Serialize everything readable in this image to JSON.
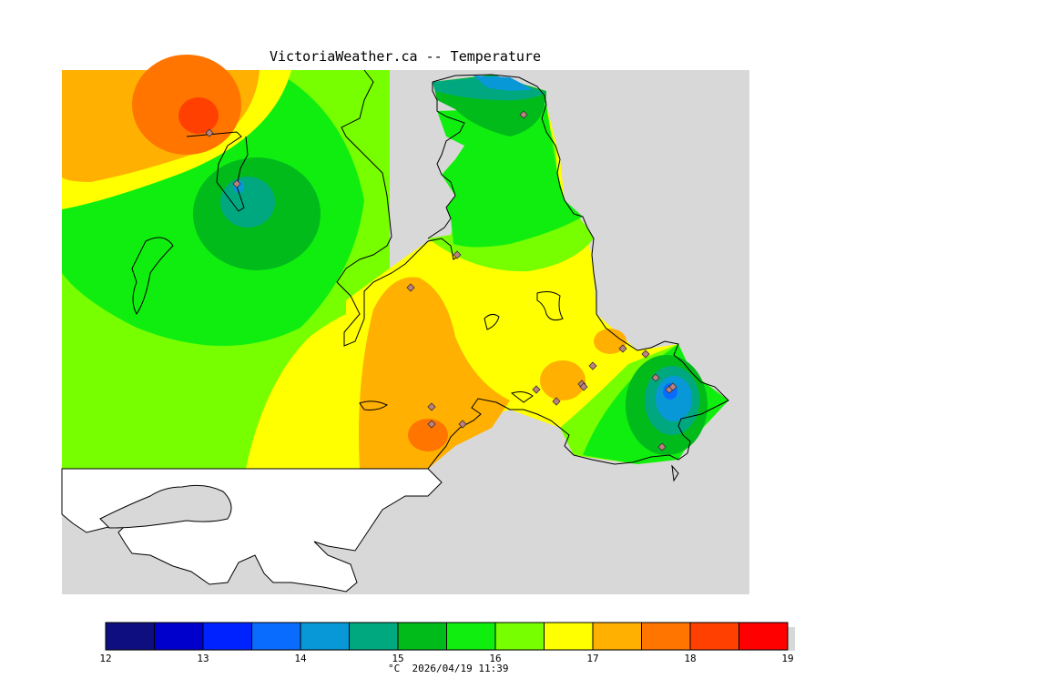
{
  "title": "VictoriaWeather.ca -- Temperature",
  "legend": {
    "ticks": [
      "12",
      "13",
      "14",
      "15",
      "16",
      "17",
      "18",
      "19"
    ],
    "unit": "°C",
    "timestamp": "2026/04/19 11:39",
    "colors": [
      "#0e0e80",
      "#0000cc",
      "#0022ff",
      "#0a6cff",
      "#0898d8",
      "#00a880",
      "#00bb1a",
      "#10ee10",
      "#77ff00",
      "#ffff00",
      "#ffb000",
      "#ff7500",
      "#ff4000",
      "#ff0000"
    ]
  },
  "map": {
    "background_color": "#d8d8d8",
    "station_count": 19
  }
}
